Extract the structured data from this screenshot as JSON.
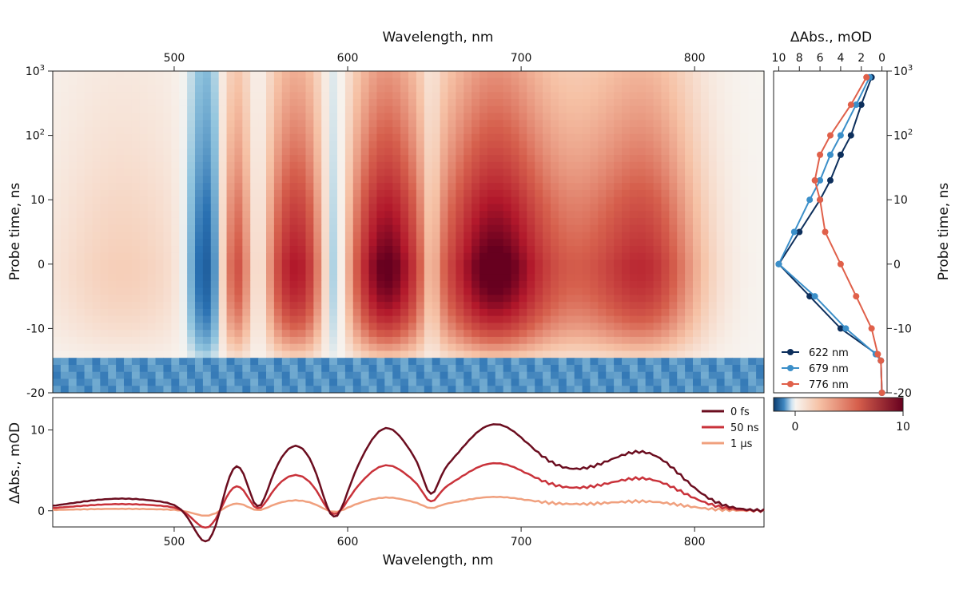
{
  "colors": {
    "neg_dark": "#0b3b6e",
    "neg_mid": "#3f87c0",
    "neg_light": "#cfe3f1",
    "zero": "#f7f4f0",
    "pos_light": "#f6c2a6",
    "pos_mid": "#d65f4c",
    "pos_dark": "#67001f",
    "series_622": "#0d2f5c",
    "series_679": "#3b8fc9",
    "series_776": "#e0604a",
    "spec_0fs": "#6b0d1f",
    "spec_50ns": "#c9323a",
    "spec_1us": "#f0a07e"
  },
  "chart_data": [
    {
      "id": "map",
      "type": "heatmap",
      "xlabel": "Wavelength, nm",
      "ylabel": "Probe time, ns",
      "xlim": [
        430,
        840
      ],
      "x_ticks": [
        "500",
        "600",
        "700",
        "800"
      ],
      "y_ticks": [
        "-20",
        "-10",
        "0",
        "10",
        "10²",
        "10³"
      ],
      "y_scale": "symmetric-log",
      "colorbar": {
        "ticks": [
          "0",
          "10"
        ],
        "range": [
          -2,
          10
        ],
        "colormap": "RdBu_r"
      },
      "bands": [
        {
          "center": 520,
          "width": 8,
          "amplitude": -5
        },
        {
          "center": 535,
          "width": 8,
          "amplitude": 6
        },
        {
          "center": 548,
          "width": 5,
          "amplitude": -3
        },
        {
          "center": 570,
          "width": 13,
          "amplitude": 8
        },
        {
          "center": 592,
          "width": 6,
          "amplitude": -4
        },
        {
          "center": 622,
          "width": 15,
          "amplitude": 10
        },
        {
          "center": 648,
          "width": 4,
          "amplitude": -3
        },
        {
          "center": 683,
          "width": 22,
          "amplitude": 10
        },
        {
          "center": 740,
          "width": 30,
          "amplitude": 4
        },
        {
          "center": 775,
          "width": 20,
          "amplitude": 5
        },
        {
          "center": 470,
          "width": 30,
          "amplitude": 1.5
        }
      ]
    },
    {
      "id": "kinetics",
      "type": "line",
      "xlabel": "ΔAbs., mOD",
      "ylabel": "Probe time, ns",
      "x_ticks": [
        "10",
        "8",
        "6",
        "4",
        "2",
        "0"
      ],
      "xlim": [
        10.5,
        -0.5
      ],
      "series": [
        {
          "name": "622 nm",
          "points": [
            [
              0.0,
              -20
            ],
            [
              0.1,
              -15
            ],
            [
              0.5,
              -14
            ],
            [
              4.0,
              -10
            ],
            [
              7.0,
              -5
            ],
            [
              10.0,
              0
            ],
            [
              8.0,
              5
            ],
            [
              6.0,
              10
            ],
            [
              5.0,
              20
            ],
            [
              4.0,
              50
            ],
            [
              3.0,
              100
            ],
            [
              2.0,
              300
            ],
            [
              1.0,
              800
            ]
          ]
        },
        {
          "name": "679 nm",
          "points": [
            [
              0.0,
              -20
            ],
            [
              0.1,
              -15
            ],
            [
              0.6,
              -14
            ],
            [
              3.5,
              -10
            ],
            [
              6.5,
              -5
            ],
            [
              10.0,
              0
            ],
            [
              8.5,
              5
            ],
            [
              7.0,
              10
            ],
            [
              6.0,
              20
            ],
            [
              5.0,
              50
            ],
            [
              4.0,
              100
            ],
            [
              2.5,
              300
            ],
            [
              1.2,
              800
            ]
          ]
        },
        {
          "name": "776 nm",
          "points": [
            [
              0.0,
              -20
            ],
            [
              0.1,
              -15
            ],
            [
              0.4,
              -14
            ],
            [
              1.0,
              -10
            ],
            [
              2.5,
              -5
            ],
            [
              4.0,
              0
            ],
            [
              5.5,
              5
            ],
            [
              6.0,
              10
            ],
            [
              6.5,
              20
            ],
            [
              6.0,
              50
            ],
            [
              5.0,
              100
            ],
            [
              3.0,
              300
            ],
            [
              1.5,
              800
            ]
          ]
        }
      ]
    },
    {
      "id": "spectra",
      "type": "line",
      "xlabel": "Wavelength, nm",
      "ylabel": "ΔAbs., mOD",
      "xlim": [
        430,
        840
      ],
      "ylim": [
        -2,
        14
      ],
      "x_ticks": [
        "500",
        "600",
        "700",
        "800"
      ],
      "y_ticks": [
        "0",
        "10"
      ],
      "series": [
        {
          "name": "0 fs",
          "scale": 1.0
        },
        {
          "name": "50 ns",
          "scale": 0.55
        },
        {
          "name": "1 µs",
          "scale": 0.16
        }
      ]
    }
  ]
}
